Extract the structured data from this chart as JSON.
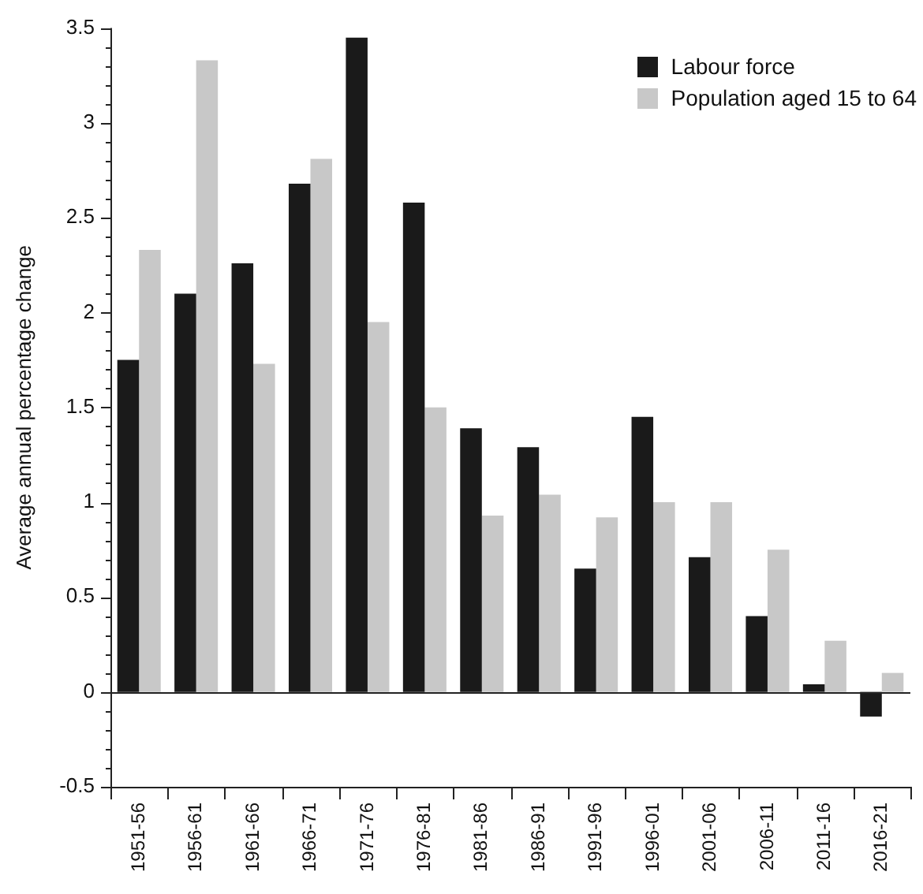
{
  "chart_data": {
    "type": "bar",
    "ylabel": "Average annual percentage change",
    "categories": [
      "1951-56",
      "1956-61",
      "1961-66",
      "1966-71",
      "1971-76",
      "1976-81",
      "1981-86",
      "1986-91",
      "1991-96",
      "1996-01",
      "2001-06",
      "2006-11",
      "2011-16",
      "2016-21"
    ],
    "series": [
      {
        "name": "Labour force",
        "color": "#1a1a1a",
        "values": [
          1.75,
          2.1,
          2.26,
          2.68,
          3.45,
          2.58,
          1.39,
          1.29,
          0.65,
          1.45,
          0.71,
          0.4,
          0.04,
          -0.13
        ]
      },
      {
        "name": "Population aged 15 to 64",
        "color": "#c8c8c8",
        "values": [
          2.33,
          3.33,
          1.73,
          2.81,
          1.95,
          1.5,
          0.93,
          1.04,
          0.92,
          1.0,
          1.0,
          0.75,
          0.27,
          0.1
        ]
      }
    ],
    "ylim": [
      -0.5,
      3.5
    ],
    "yticks": [
      -0.5,
      {
        "value": -0.4,
        "label": null
      },
      {
        "value": -0.3,
        "label": null
      },
      {
        "value": -0.2,
        "label": null
      },
      {
        "value": -0.1,
        "label": null
      },
      0,
      {
        "value": 0.1,
        "label": null
      },
      {
        "value": 0.2,
        "label": null
      },
      {
        "value": 0.3,
        "label": null
      },
      {
        "value": 0.4,
        "label": null
      },
      0.5,
      {
        "value": 0.6,
        "label": null
      },
      {
        "value": 0.7,
        "label": null
      },
      {
        "value": 0.8,
        "label": null
      },
      {
        "value": 0.9,
        "label": null
      },
      1,
      {
        "value": 1.1,
        "label": null
      },
      {
        "value": 1.2,
        "label": null
      },
      {
        "value": 1.3,
        "label": null
      },
      {
        "value": 1.4,
        "label": null
      },
      1.5,
      {
        "value": 1.6,
        "label": null
      },
      {
        "value": 1.7,
        "label": null
      },
      {
        "value": 1.8,
        "label": null
      },
      {
        "value": 1.9,
        "label": null
      },
      2,
      {
        "value": 2.1,
        "label": null
      },
      {
        "value": 2.2,
        "label": null
      },
      {
        "value": 2.3,
        "label": null
      },
      {
        "value": 2.4,
        "label": null
      },
      2.5,
      {
        "value": 2.6,
        "label": null
      },
      {
        "value": 2.7,
        "label": null
      },
      {
        "value": 2.8,
        "label": null
      },
      {
        "value": 2.9,
        "label": null
      },
      3,
      {
        "value": 3.1,
        "label": null
      },
      {
        "value": 3.2,
        "label": null
      },
      {
        "value": 3.3,
        "label": null
      },
      {
        "value": 3.4,
        "label": null
      },
      3.5
    ],
    "ref_lines": [
      {
        "axis": "y",
        "value": 0,
        "color": "#222222"
      }
    ],
    "legend": "top right"
  }
}
